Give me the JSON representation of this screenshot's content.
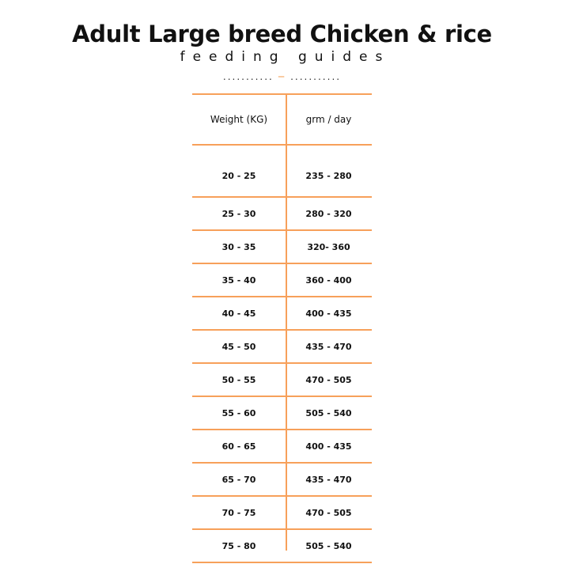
{
  "title": "Adult Large breed Chicken & rice",
  "subtitle": "feeding guides",
  "divider": {
    "left": "...........",
    "right": "...........",
    "icon": "bone-icon",
    "accent": "#f7a05a"
  },
  "table": {
    "headers": [
      "Weight (KG)",
      "grm / day"
    ],
    "rows": [
      [
        "20 - 25",
        "235 - 280"
      ],
      [
        "25 - 30",
        "280 - 320"
      ],
      [
        "30 - 35",
        "320- 360"
      ],
      [
        "35 - 40",
        "360 - 400"
      ],
      [
        "40 - 45",
        "400 - 435"
      ],
      [
        "45 - 50",
        "435 - 470"
      ],
      [
        "50 - 55",
        "470 - 505"
      ],
      [
        "55 - 60",
        "505 - 540"
      ],
      [
        "60 - 65",
        "400 - 435"
      ],
      [
        "65 - 70",
        "435 - 470"
      ],
      [
        "70 - 75",
        "470 - 505"
      ],
      [
        "75 - 80",
        "505 - 540"
      ]
    ]
  }
}
